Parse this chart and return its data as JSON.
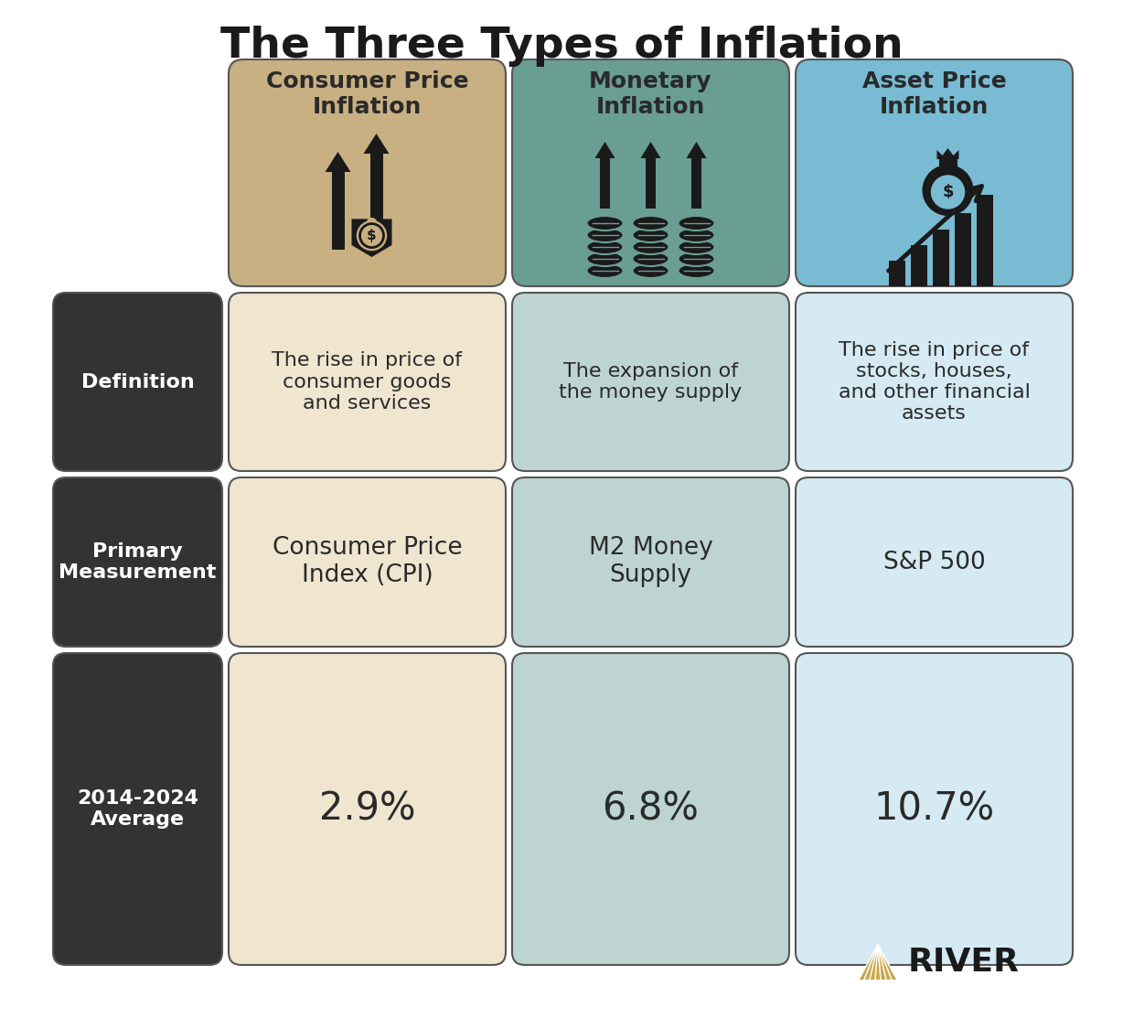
{
  "title": "The Three Types of Inflation",
  "title_fontsize": 34,
  "background_color": "#ffffff",
  "col_headers": [
    "Consumer Price\nInflation",
    "Monetary\nInflation",
    "Asset Price\nInflation"
  ],
  "col_header_colors": [
    "#c8b082",
    "#6a9e93",
    "#78bbd3"
  ],
  "col_header_text_color": "#2a2a2a",
  "row_labels": [
    "Definition",
    "Primary\nMeasurement",
    "2014-2024\nAverage"
  ],
  "row_label_bg": "#333333",
  "row_label_text_color": "#ffffff",
  "definitions": [
    "The rise in price of\nconsumer goods\nand services",
    "The expansion of\nthe money supply",
    "The rise in price of\nstocks, houses,\nand other financial\nassets"
  ],
  "measurements": [
    "Consumer Price\nIndex (CPI)",
    "M2 Money\nSupply",
    "S&P 500"
  ],
  "averages": [
    "2.9%",
    "6.8%",
    "10.7%"
  ],
  "def_bg_colors": [
    "#f0e6d0",
    "#bdd4d1",
    "#d5eaf3"
  ],
  "meas_bg_colors": [
    "#f0e6d0",
    "#bdd4d1",
    "#d5eaf3"
  ],
  "avg_bg_colors": [
    "#f0e6d0",
    "#bdd4d1",
    "#d5eaf3"
  ],
  "cell_text_color": "#2a2a2a",
  "border_color": "#555555",
  "river_color": "#c9a84c",
  "icon_color": "#1a1a1a",
  "def_fontsize": 16,
  "meas_fontsize": 19,
  "avg_fontsize": 30,
  "header_label_fontsize": 18,
  "row_label_fontsize": 16
}
